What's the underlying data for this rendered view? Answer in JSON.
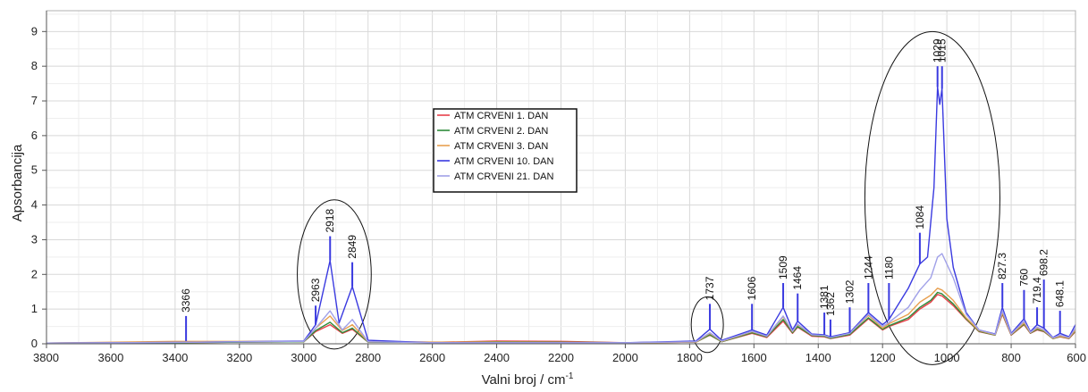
{
  "chart_data": {
    "type": "line",
    "title": "",
    "xlabel": "Valni broj / cm",
    "xlabel_superscript": "-1",
    "ylabel": "Apsorbancija",
    "xlim": [
      3800,
      600
    ],
    "ylim": [
      0,
      9.6
    ],
    "x_reversed": true,
    "grid": true,
    "legend_position": "center-left",
    "x_ticks": [
      3800,
      3600,
      3400,
      3200,
      3000,
      2800,
      2600,
      2400,
      2200,
      2000,
      1800,
      1600,
      1400,
      1200,
      1000,
      800,
      600
    ],
    "y_ticks": [
      0,
      1,
      2,
      3,
      4,
      5,
      6,
      7,
      8,
      9
    ],
    "series": [
      {
        "name": "ATM CRVENI 1. DAN",
        "color": "#e8404a",
        "points": [
          [
            3800,
            0.02
          ],
          [
            3400,
            0.03
          ],
          [
            3000,
            0.06
          ],
          [
            2963,
            0.35
          ],
          [
            2918,
            0.55
          ],
          [
            2880,
            0.3
          ],
          [
            2849,
            0.42
          ],
          [
            2800,
            0.05
          ],
          [
            2600,
            0.04
          ],
          [
            2400,
            0.08
          ],
          [
            2200,
            0.07
          ],
          [
            2000,
            0.03
          ],
          [
            1780,
            0.05
          ],
          [
            1737,
            0.25
          ],
          [
            1700,
            0.06
          ],
          [
            1606,
            0.3
          ],
          [
            1560,
            0.18
          ],
          [
            1509,
            0.65
          ],
          [
            1480,
            0.3
          ],
          [
            1464,
            0.48
          ],
          [
            1420,
            0.22
          ],
          [
            1381,
            0.2
          ],
          [
            1362,
            0.15
          ],
          [
            1302,
            0.25
          ],
          [
            1244,
            0.72
          ],
          [
            1200,
            0.4
          ],
          [
            1180,
            0.5
          ],
          [
            1120,
            0.7
          ],
          [
            1084,
            1.0
          ],
          [
            1050,
            1.2
          ],
          [
            1029,
            1.42
          ],
          [
            1015,
            1.38
          ],
          [
            980,
            1.1
          ],
          [
            940,
            0.7
          ],
          [
            900,
            0.35
          ],
          [
            850,
            0.25
          ],
          [
            827.3,
            0.85
          ],
          [
            800,
            0.25
          ],
          [
            760,
            0.55
          ],
          [
            740,
            0.3
          ],
          [
            719.4,
            0.4
          ],
          [
            698.2,
            0.35
          ],
          [
            670,
            0.15
          ],
          [
            648.1,
            0.2
          ],
          [
            620,
            0.15
          ],
          [
            600,
            0.35
          ]
        ]
      },
      {
        "name": "ATM CRVENI 2. DAN",
        "color": "#2e8b3a",
        "points": [
          [
            3800,
            0.02
          ],
          [
            3400,
            0.03
          ],
          [
            3000,
            0.06
          ],
          [
            2963,
            0.38
          ],
          [
            2918,
            0.62
          ],
          [
            2880,
            0.32
          ],
          [
            2849,
            0.45
          ],
          [
            2800,
            0.05
          ],
          [
            2600,
            0.04
          ],
          [
            2400,
            0.06
          ],
          [
            2200,
            0.05
          ],
          [
            2000,
            0.03
          ],
          [
            1780,
            0.05
          ],
          [
            1737,
            0.26
          ],
          [
            1700,
            0.06
          ],
          [
            1606,
            0.32
          ],
          [
            1560,
            0.2
          ],
          [
            1509,
            0.7
          ],
          [
            1480,
            0.32
          ],
          [
            1464,
            0.5
          ],
          [
            1420,
            0.24
          ],
          [
            1381,
            0.22
          ],
          [
            1362,
            0.16
          ],
          [
            1302,
            0.27
          ],
          [
            1244,
            0.75
          ],
          [
            1200,
            0.42
          ],
          [
            1180,
            0.52
          ],
          [
            1120,
            0.75
          ],
          [
            1084,
            1.05
          ],
          [
            1050,
            1.25
          ],
          [
            1029,
            1.48
          ],
          [
            1015,
            1.44
          ],
          [
            980,
            1.15
          ],
          [
            940,
            0.72
          ],
          [
            900,
            0.36
          ],
          [
            850,
            0.25
          ],
          [
            827.3,
            0.88
          ],
          [
            800,
            0.26
          ],
          [
            760,
            0.57
          ],
          [
            740,
            0.31
          ],
          [
            719.4,
            0.42
          ],
          [
            698.2,
            0.36
          ],
          [
            670,
            0.15
          ],
          [
            648.1,
            0.21
          ],
          [
            620,
            0.16
          ],
          [
            600,
            0.37
          ]
        ]
      },
      {
        "name": "ATM CRVENI 3. DAN",
        "color": "#e8a050",
        "points": [
          [
            3800,
            0.02
          ],
          [
            3400,
            0.07
          ],
          [
            3000,
            0.07
          ],
          [
            2963,
            0.45
          ],
          [
            2918,
            0.8
          ],
          [
            2880,
            0.38
          ],
          [
            2849,
            0.55
          ],
          [
            2800,
            0.06
          ],
          [
            2600,
            0.05
          ],
          [
            2400,
            0.05
          ],
          [
            2200,
            0.04
          ],
          [
            2000,
            0.03
          ],
          [
            1780,
            0.05
          ],
          [
            1737,
            0.3
          ],
          [
            1700,
            0.07
          ],
          [
            1606,
            0.35
          ],
          [
            1560,
            0.22
          ],
          [
            1509,
            0.78
          ],
          [
            1480,
            0.35
          ],
          [
            1464,
            0.55
          ],
          [
            1420,
            0.26
          ],
          [
            1381,
            0.24
          ],
          [
            1362,
            0.18
          ],
          [
            1302,
            0.3
          ],
          [
            1244,
            0.82
          ],
          [
            1200,
            0.45
          ],
          [
            1180,
            0.58
          ],
          [
            1120,
            0.85
          ],
          [
            1084,
            1.2
          ],
          [
            1050,
            1.4
          ],
          [
            1029,
            1.6
          ],
          [
            1015,
            1.55
          ],
          [
            980,
            1.25
          ],
          [
            940,
            0.75
          ],
          [
            900,
            0.38
          ],
          [
            850,
            0.26
          ],
          [
            827.3,
            0.9
          ],
          [
            800,
            0.27
          ],
          [
            760,
            0.6
          ],
          [
            740,
            0.32
          ],
          [
            719.4,
            0.45
          ],
          [
            698.2,
            0.38
          ],
          [
            670,
            0.16
          ],
          [
            648.1,
            0.22
          ],
          [
            620,
            0.17
          ],
          [
            600,
            0.4
          ]
        ]
      },
      {
        "name": "ATM CRVENI 10. DAN",
        "color": "#3a3ae0",
        "points": [
          [
            3800,
            0.02
          ],
          [
            3400,
            0.04
          ],
          [
            3000,
            0.08
          ],
          [
            2963,
            0.55
          ],
          [
            2918,
            2.4
          ],
          [
            2890,
            0.6
          ],
          [
            2849,
            1.65
          ],
          [
            2800,
            0.1
          ],
          [
            2600,
            0.03
          ],
          [
            2400,
            0.03
          ],
          [
            2200,
            0.03
          ],
          [
            2000,
            0.03
          ],
          [
            1780,
            0.08
          ],
          [
            1737,
            0.42
          ],
          [
            1700,
            0.1
          ],
          [
            1606,
            0.4
          ],
          [
            1560,
            0.25
          ],
          [
            1509,
            1.05
          ],
          [
            1480,
            0.4
          ],
          [
            1464,
            0.65
          ],
          [
            1420,
            0.28
          ],
          [
            1381,
            0.26
          ],
          [
            1362,
            0.2
          ],
          [
            1302,
            0.32
          ],
          [
            1244,
            0.9
          ],
          [
            1200,
            0.55
          ],
          [
            1180,
            0.7
          ],
          [
            1120,
            1.6
          ],
          [
            1084,
            2.3
          ],
          [
            1060,
            2.5
          ],
          [
            1040,
            4.5
          ],
          [
            1029,
            7.4
          ],
          [
            1022,
            6.9
          ],
          [
            1015,
            7.35
          ],
          [
            1000,
            3.6
          ],
          [
            980,
            2.2
          ],
          [
            940,
            0.9
          ],
          [
            900,
            0.4
          ],
          [
            850,
            0.28
          ],
          [
            827.3,
            1.05
          ],
          [
            800,
            0.3
          ],
          [
            760,
            0.72
          ],
          [
            740,
            0.35
          ],
          [
            719.4,
            0.55
          ],
          [
            698.2,
            0.45
          ],
          [
            670,
            0.18
          ],
          [
            648.1,
            0.3
          ],
          [
            620,
            0.2
          ],
          [
            600,
            0.55
          ]
        ]
      },
      {
        "name": "ATM CRVENI 21. DAN",
        "color": "#a0a0e8",
        "points": [
          [
            3800,
            0.02
          ],
          [
            3400,
            0.04
          ],
          [
            3000,
            0.07
          ],
          [
            2963,
            0.45
          ],
          [
            2918,
            0.95
          ],
          [
            2880,
            0.4
          ],
          [
            2849,
            0.7
          ],
          [
            2800,
            0.06
          ],
          [
            2600,
            0.03
          ],
          [
            2400,
            0.03
          ],
          [
            2200,
            0.03
          ],
          [
            2000,
            0.03
          ],
          [
            1780,
            0.06
          ],
          [
            1737,
            0.32
          ],
          [
            1700,
            0.08
          ],
          [
            1606,
            0.36
          ],
          [
            1560,
            0.22
          ],
          [
            1509,
            0.8
          ],
          [
            1480,
            0.36
          ],
          [
            1464,
            0.57
          ],
          [
            1420,
            0.26
          ],
          [
            1381,
            0.24
          ],
          [
            1362,
            0.18
          ],
          [
            1302,
            0.3
          ],
          [
            1244,
            0.85
          ],
          [
            1200,
            0.5
          ],
          [
            1180,
            0.62
          ],
          [
            1120,
            1.05
          ],
          [
            1084,
            1.55
          ],
          [
            1050,
            1.9
          ],
          [
            1029,
            2.5
          ],
          [
            1015,
            2.6
          ],
          [
            980,
            1.9
          ],
          [
            940,
            0.85
          ],
          [
            900,
            0.4
          ],
          [
            850,
            0.27
          ],
          [
            827.3,
            0.95
          ],
          [
            800,
            0.28
          ],
          [
            760,
            0.65
          ],
          [
            740,
            0.33
          ],
          [
            719.4,
            0.48
          ],
          [
            698.2,
            0.4
          ],
          [
            670,
            0.17
          ],
          [
            648.1,
            0.25
          ],
          [
            620,
            0.18
          ],
          [
            600,
            0.45
          ]
        ]
      }
    ],
    "peak_annotations": [
      {
        "label": "3366",
        "x": 3366,
        "y_from": 0.08,
        "y_to": 0.8
      },
      {
        "label": "2963",
        "x": 2963,
        "y_from": 0.55,
        "y_to": 1.1
      },
      {
        "label": "2918",
        "x": 2918,
        "y_from": 2.4,
        "y_to": 3.1
      },
      {
        "label": "2849",
        "x": 2849,
        "y_from": 1.65,
        "y_to": 2.35
      },
      {
        "label": "1737",
        "x": 1737,
        "y_from": 0.42,
        "y_to": 1.15
      },
      {
        "label": "1606",
        "x": 1606,
        "y_from": 0.4,
        "y_to": 1.15
      },
      {
        "label": "1509",
        "x": 1509,
        "y_from": 1.05,
        "y_to": 1.75
      },
      {
        "label": "1464",
        "x": 1464,
        "y_from": 0.65,
        "y_to": 1.45
      },
      {
        "label": "1381",
        "x": 1381,
        "y_from": 0.26,
        "y_to": 0.9
      },
      {
        "label": "1362",
        "x": 1362,
        "y_from": 0.2,
        "y_to": 0.7
      },
      {
        "label": "1302",
        "x": 1302,
        "y_from": 0.32,
        "y_to": 1.05
      },
      {
        "label": "1244",
        "x": 1244,
        "y_from": 0.9,
        "y_to": 1.75
      },
      {
        "label": "1180",
        "x": 1180,
        "y_from": 0.7,
        "y_to": 1.75
      },
      {
        "label": "1084",
        "x": 1084,
        "y_from": 2.3,
        "y_to": 3.2
      },
      {
        "label": "1029",
        "x": 1029,
        "y_from": 7.4,
        "y_to": 8.0
      },
      {
        "label": "1015",
        "x": 1015,
        "y_from": 7.35,
        "y_to": 8.0
      },
      {
        "label": "827.3",
        "x": 827.3,
        "y_from": 1.05,
        "y_to": 1.75
      },
      {
        "label": "760",
        "x": 760,
        "y_from": 0.72,
        "y_to": 1.55
      },
      {
        "label": "719.4",
        "x": 719.4,
        "y_from": 0.55,
        "y_to": 1.05
      },
      {
        "label": "698.2",
        "x": 698.2,
        "y_from": 0.45,
        "y_to": 1.85
      },
      {
        "label": "648.1",
        "x": 648.1,
        "y_from": 0.3,
        "y_to": 0.95
      }
    ],
    "highlight_ellipses": [
      {
        "cx": 2905,
        "cy": 2.0,
        "rx": 115,
        "ry": 2.15
      },
      {
        "cx": 1745,
        "cy": 0.55,
        "rx": 50,
        "ry": 0.8
      },
      {
        "cx": 1045,
        "cy": 4.2,
        "rx": 210,
        "ry": 4.8
      }
    ]
  }
}
